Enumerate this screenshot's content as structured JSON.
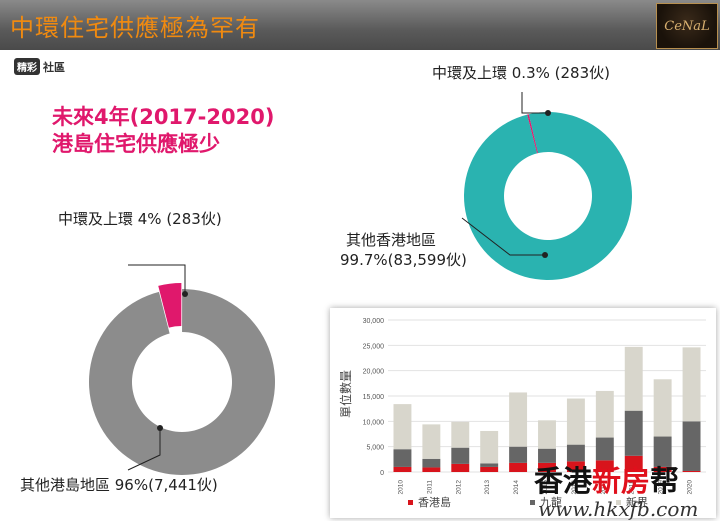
{
  "header": {
    "title": "中環住宅供應極為罕有",
    "logo_text": "CeNaL"
  },
  "community_logo": {
    "brush": "精彩",
    "text": "社區"
  },
  "headline": {
    "line1": "未來4年(2017-2020)",
    "line2": "港島住宅供應極少"
  },
  "colors": {
    "accent_orange": "#f08a10",
    "headline_pink": "#e0186c",
    "donut_gray": "#8c8c8c",
    "donut_teal": "#2ab3b0",
    "donut_pink": "#e0186c",
    "bar_light": "#d8d6cc",
    "bar_dark": "#666666",
    "bar_red": "#d8141c"
  },
  "donut_island": {
    "label_central": "中環及上環 4% (283伙)",
    "label_other": "其他港島地區 96%(7,441伙)"
  },
  "donut_hk": {
    "label_central": "中環及上環 0.3% (283伙)",
    "label_other_line1": "其他香港地區",
    "label_other_line2": "99.7%(83,599伙)"
  },
  "chart_data": [
    {
      "type": "pie",
      "categories": [
        "中環及上環",
        "其他港島地區"
      ],
      "values": [
        4,
        96
      ],
      "counts": [
        283,
        7441
      ]
    },
    {
      "type": "pie",
      "categories": [
        "中環及上環",
        "其他香港地區"
      ],
      "values": [
        0.3,
        99.7
      ],
      "counts": [
        283,
        83599
      ]
    },
    {
      "type": "bar",
      "stacked": true,
      "categories": [
        "2010",
        "2011",
        "2012",
        "2013",
        "2014",
        "2015",
        "2016",
        "2017",
        "2018",
        "2019",
        "2020"
      ],
      "series": [
        {
          "name": "香港島",
          "values": [
            1000,
            900,
            1600,
            1000,
            1800,
            1800,
            2100,
            2300,
            3200,
            1000,
            200
          ]
        },
        {
          "name": "九龍",
          "values": [
            3500,
            1700,
            3200,
            700,
            3200,
            2800,
            3300,
            4500,
            8900,
            6000,
            9800
          ]
        },
        {
          "name": "新界",
          "values": [
            8900,
            6800,
            5100,
            6400,
            10700,
            5600,
            9100,
            9200,
            12600,
            11300,
            14600
          ]
        }
      ],
      "ylabel": "單位數量",
      "ylim": [
        0,
        30000
      ],
      "yticks": [
        "0",
        "5,000",
        "10,000",
        "15,000",
        "20,000",
        "25,000",
        "30,000"
      ],
      "grid": true,
      "legend": "bottom"
    }
  ],
  "watermark": {
    "part1": "香港",
    "part2": "新房",
    "part3": "帮",
    "url": "www.hkxfb.com"
  }
}
